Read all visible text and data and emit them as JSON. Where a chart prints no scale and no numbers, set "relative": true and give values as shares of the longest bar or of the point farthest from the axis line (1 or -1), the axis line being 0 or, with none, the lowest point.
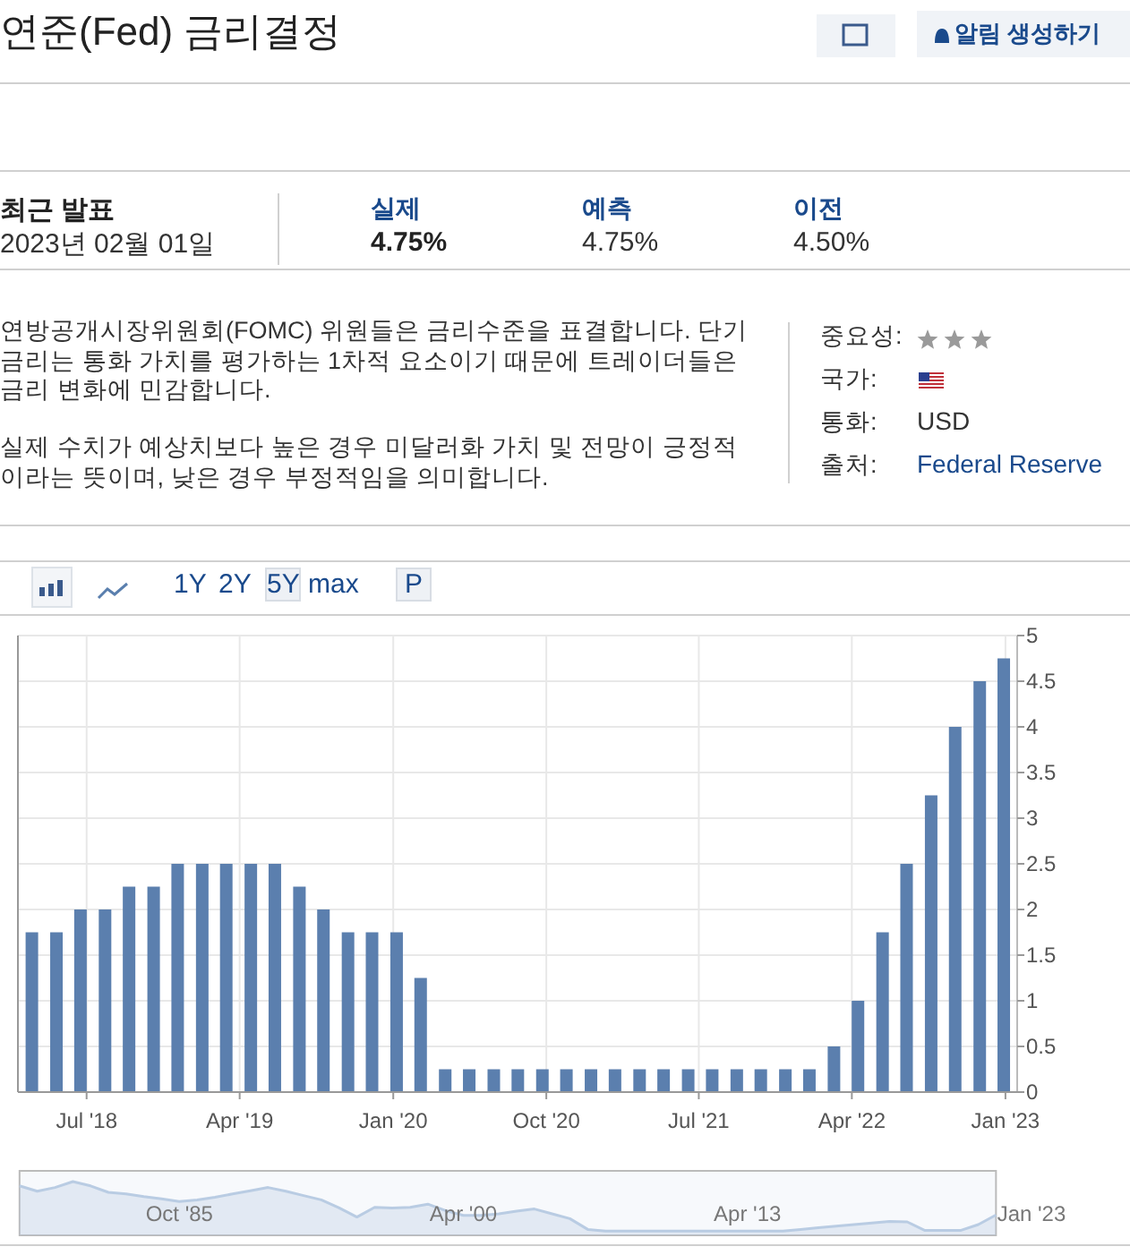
{
  "chart_data": [
    {
      "type": "other",
      "title": "연준(Fed) 금리결정",
      "annotations": [
        "알림 생성하기",
        "최근 발표",
        "2023년 02월 01일",
        "실제",
        "4.75%",
        "예측",
        "4.75%",
        "이전",
        "4.50%",
        "연방공개시장위원회(FOMC) 위원들은 금리수준을 표결합니다. 단기 금리는 통화 가치를 평가하는 1차적 요소이기 때문에 트레이더들은 금리 변화에 민감합니다.",
        "실제 수치가 예상치보다 높은 경우 미달러화 가치 및 전망이 긍정적이라는 뜻이며, 낮은 경우 부정적임을 의미합니다.",
        "중요성:",
        "국가:",
        "통화:",
        "USD",
        "출처:",
        "Federal Reserve",
        "1Y",
        "2Y",
        "5Y",
        "max",
        "P"
      ]
    },
    {
      "type": "bar",
      "color": "#5b7fae",
      "grid": true,
      "x": [
        "2018-03-25",
        "2018-05-08",
        "2018-06-20",
        "2018-08-03",
        "2018-09-15",
        "2018-10-29",
        "2018-12-11",
        "2019-01-24",
        "2019-03-08",
        "2019-04-21",
        "2019-06-03",
        "2019-07-17",
        "2019-08-29",
        "2019-10-12",
        "2019-11-24",
        "2020-01-07",
        "2020-02-19",
        "2020-04-03",
        "2020-05-16",
        "2020-06-29",
        "2020-08-11",
        "2020-09-24",
        "2020-11-06",
        "2020-12-20",
        "2021-02-01",
        "2021-03-17",
        "2021-04-29",
        "2021-06-12",
        "2021-07-25",
        "2021-09-07",
        "2021-10-20",
        "2021-12-03",
        "2022-01-15",
        "2022-02-28",
        "2022-04-12",
        "2022-05-26",
        "2022-07-08",
        "2022-08-21",
        "2022-10-03",
        "2022-11-16",
        "2022-12-29"
      ],
      "values": [
        1.75,
        1.75,
        2,
        2,
        2.25,
        2.25,
        2.5,
        2.5,
        2.5,
        2.5,
        2.5,
        2.25,
        2,
        1.75,
        1.75,
        1.75,
        1.25,
        0.25,
        0.25,
        0.25,
        0.25,
        0.25,
        0.25,
        0.25,
        0.25,
        0.25,
        0.25,
        0.25,
        0.25,
        0.25,
        0.25,
        0.25,
        0.25,
        0.5,
        1,
        1.75,
        2.5,
        3.25,
        4,
        4.5,
        4.75
      ],
      "xlim": [
        "2018-02-28",
        "2023-01-22"
      ],
      "xticks": [
        {
          "value": "2018-07-01",
          "label": "Jul '18"
        },
        {
          "value": "2019-04-01",
          "label": "Apr '19"
        },
        {
          "value": "2020-01-01",
          "label": "Jan '20"
        },
        {
          "value": "2020-10-01",
          "label": "Oct '20"
        },
        {
          "value": "2021-07-01",
          "label": "Jul '21"
        },
        {
          "value": "2022-04-01",
          "label": "Apr '22"
        },
        {
          "value": "2023-01-01",
          "label": "Jan '23"
        }
      ],
      "ylim": [
        0,
        5
      ],
      "yticks": [
        0,
        0.5,
        1,
        1.5,
        2,
        2.5,
        3,
        3.5,
        4,
        4.5,
        5
      ]
    },
    {
      "type": "area",
      "relative": true,
      "color": "#b9cce3",
      "categories": [
        null,
        null,
        null,
        null,
        null,
        null,
        null,
        null,
        null,
        null,
        "Oct '85",
        null,
        null,
        null,
        null,
        null,
        null,
        null,
        null,
        null,
        null,
        null,
        null,
        null,
        null,
        null,
        "Apr '00",
        null,
        null,
        null,
        null,
        null,
        null,
        null,
        null,
        null,
        null,
        null,
        null,
        null,
        null,
        null,
        "Apr '13",
        null,
        null,
        null,
        null,
        null,
        null,
        null,
        null,
        null,
        null,
        null,
        null,
        null,
        null,
        null,
        "Jan '23"
      ],
      "values": [
        null,
        0.92,
        0.82,
        0.89,
        1,
        0.92,
        0.8,
        0.77,
        0.72,
        0.68,
        0.63,
        0.66,
        0.71,
        0.77,
        0.83,
        0.89,
        0.82,
        0.74,
        0.66,
        0.51,
        0.34,
        0.52,
        0.51,
        0.52,
        0.58,
        0.46,
        0.37,
        0.37,
        0.4,
        0.45,
        0.49,
        0.4,
        0.31,
        0.11,
        0.08,
        0.08,
        0.08,
        0.08,
        0.08,
        0.08,
        0.08,
        0.08,
        0.08,
        0.08,
        0.08,
        0.11,
        0.14,
        0.17,
        0.2,
        0.23,
        0.26,
        0.25,
        0.09,
        0.09,
        0.09,
        0.2,
        0.38,
        null,
        null
      ]
    }
  ]
}
